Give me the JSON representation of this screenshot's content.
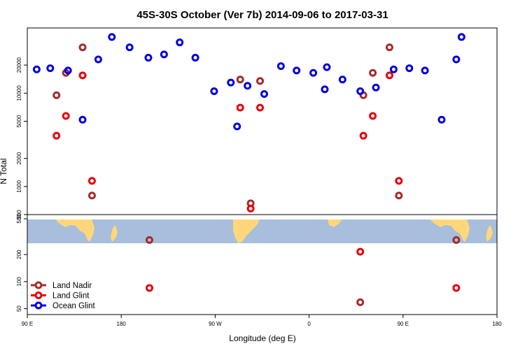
{
  "chart_data": {
    "type": "scatter",
    "title": "45S-30S October (Ver 7b)   2014-09-06 to 2017-03-31",
    "xlabel": "Longitude (deg E)",
    "ylabel": "N Total",
    "x_ticks": [
      "90 E",
      "180",
      "90 W",
      "0",
      "90 E",
      "180"
    ],
    "y_ticks_upper": [
      "20000",
      "10000",
      "5000",
      "2000",
      "1000",
      "500"
    ],
    "y_ticks_lower": [
      "500",
      "200",
      "100",
      "50"
    ],
    "y_tick_values_upper": [
      20000,
      10000,
      5000,
      2000,
      1000,
      500
    ],
    "y_tick_values_lower": [
      500,
      200,
      100,
      50
    ],
    "y_scale": "log",
    "upper_ylim": [
      500,
      50000
    ],
    "lower_ylim": [
      43,
      500
    ],
    "xlim": [
      90,
      540
    ],
    "legend_position": "bottom-left",
    "series": [
      {
        "name": "Land Nadir",
        "color": "#a52a2a",
        "points": [
          [
            118,
            9500
          ],
          [
            127,
            16500
          ],
          [
            143,
            31000
          ],
          [
            152,
            800
          ],
          [
            207,
            290
          ],
          [
            294,
            14000
          ],
          [
            304,
            660
          ],
          [
            313,
            13500
          ],
          [
            412,
            9500
          ],
          [
            421,
            16500
          ],
          [
            437,
            31000
          ],
          [
            446,
            800
          ],
          [
            501,
            290
          ],
          [
            409,
            59
          ]
        ]
      },
      {
        "name": "Land Glint",
        "color": "#e8000a",
        "points": [
          [
            118,
            3500
          ],
          [
            127,
            5700
          ],
          [
            143,
            15500
          ],
          [
            152,
            1150
          ],
          [
            207,
            85
          ],
          [
            294,
            7000
          ],
          [
            304,
            580
          ],
          [
            313,
            7000
          ],
          [
            412,
            3500
          ],
          [
            421,
            5700
          ],
          [
            437,
            15500
          ],
          [
            446,
            1150
          ],
          [
            501,
            85
          ],
          [
            409,
            215
          ]
        ]
      },
      {
        "name": "Ocean Glint",
        "color": "#0000e0",
        "points": [
          [
            99,
            18000
          ],
          [
            112,
            18500
          ],
          [
            129,
            17500
          ],
          [
            143,
            5200
          ],
          [
            158,
            23000
          ],
          [
            171,
            40000
          ],
          [
            188,
            31000
          ],
          [
            206,
            24000
          ],
          [
            221,
            26000
          ],
          [
            236,
            35000
          ],
          [
            251,
            24000
          ],
          [
            269,
            10500
          ],
          [
            285,
            13000
          ],
          [
            291,
            4400
          ],
          [
            301,
            12000
          ],
          [
            317,
            9800
          ],
          [
            333,
            19500
          ],
          [
            348,
            17500
          ],
          [
            364,
            16500
          ],
          [
            375,
            11000
          ],
          [
            377,
            19000
          ],
          [
            392,
            14000
          ],
          [
            409,
            10500
          ],
          [
            424,
            11500
          ],
          [
            441,
            18000
          ],
          [
            456,
            18500
          ],
          [
            471,
            17500
          ],
          [
            487,
            5200
          ],
          [
            501,
            23000
          ],
          [
            506,
            40000
          ]
        ]
      }
    ]
  }
}
